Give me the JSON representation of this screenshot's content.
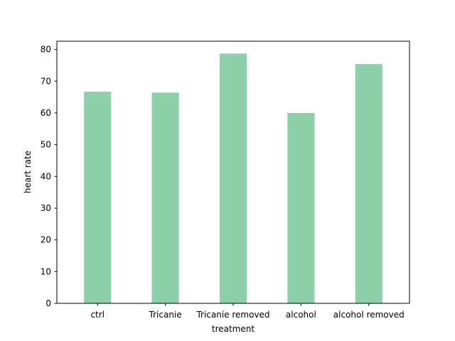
{
  "chart_data": {
    "type": "bar",
    "categories": [
      "ctrl",
      "Tricanie",
      "Tricanie removed",
      "alcohol",
      "alcohol removed"
    ],
    "values": [
      66.7,
      66.4,
      78.7,
      60.0,
      75.4
    ],
    "title": "",
    "xlabel": "treatment",
    "ylabel": "heart rate",
    "ylim": [
      0,
      82.6
    ],
    "yticks": [
      0,
      10,
      20,
      30,
      40,
      50,
      60,
      70,
      80
    ],
    "bar_color": "#8dd1aa",
    "grid": false
  }
}
